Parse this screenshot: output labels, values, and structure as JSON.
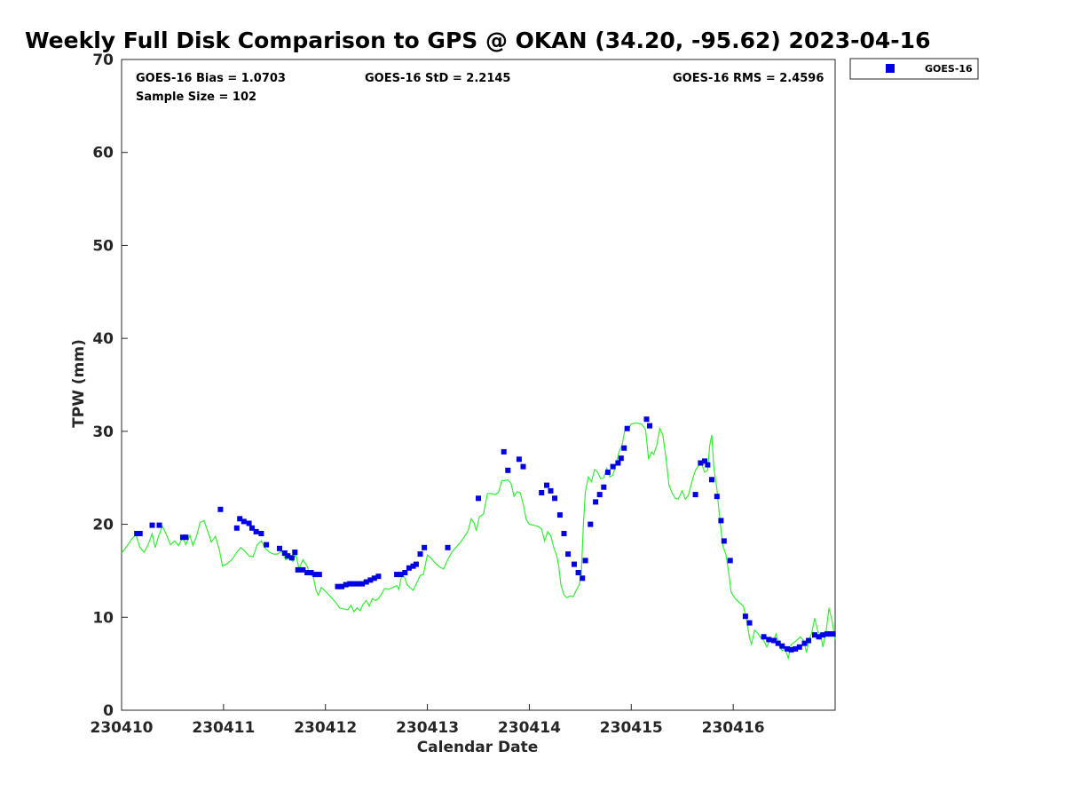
{
  "chart_data": {
    "type": "scatter",
    "title": "Weekly Full Disk Comparison to GPS @ OKAN (34.20, -95.62) 2023-04-16",
    "xlabel": "Calendar Date",
    "ylabel": "TPW (mm)",
    "xlim": [
      0,
      7
    ],
    "ylim": [
      0,
      70
    ],
    "x_tick_labels": [
      "230410",
      "230411",
      "230412",
      "230413",
      "230414",
      "230415",
      "230416"
    ],
    "y_tick_labels": [
      "0",
      "10",
      "20",
      "30",
      "40",
      "50",
      "60",
      "70"
    ],
    "grid": false,
    "legend_position": "top-right (outside plot)",
    "stats": {
      "bias": "GOES-16 Bias = 1.0703",
      "std": "GOES-16 StD = 2.2145",
      "rms": "GOES-16 RMS = 2.4596",
      "sample_size": "Sample Size = 102"
    },
    "series": [
      {
        "name": "GOES-16",
        "kind": "scatter",
        "marker": "square",
        "color": "#0000e6",
        "points": [
          [
            0.15,
            19.0
          ],
          [
            0.18,
            19.0
          ],
          [
            0.3,
            19.9
          ],
          [
            0.37,
            19.9
          ],
          [
            0.6,
            18.6
          ],
          [
            0.63,
            18.6
          ],
          [
            0.97,
            21.6
          ],
          [
            1.13,
            19.6
          ],
          [
            1.16,
            20.6
          ],
          [
            1.2,
            20.3
          ],
          [
            1.25,
            20.1
          ],
          [
            1.28,
            19.6
          ],
          [
            1.32,
            19.2
          ],
          [
            1.37,
            19.0
          ],
          [
            1.42,
            17.8
          ],
          [
            1.55,
            17.4
          ],
          [
            1.6,
            16.9
          ],
          [
            1.63,
            16.6
          ],
          [
            1.67,
            16.4
          ],
          [
            1.7,
            17.0
          ],
          [
            1.73,
            15.1
          ],
          [
            1.78,
            15.1
          ],
          [
            1.82,
            14.8
          ],
          [
            1.86,
            14.8
          ],
          [
            1.9,
            14.6
          ],
          [
            1.94,
            14.6
          ],
          [
            2.12,
            13.3
          ],
          [
            2.16,
            13.3
          ],
          [
            2.2,
            13.5
          ],
          [
            2.24,
            13.6
          ],
          [
            2.28,
            13.6
          ],
          [
            2.32,
            13.6
          ],
          [
            2.36,
            13.6
          ],
          [
            2.4,
            13.8
          ],
          [
            2.44,
            14.0
          ],
          [
            2.48,
            14.2
          ],
          [
            2.52,
            14.4
          ],
          [
            2.7,
            14.6
          ],
          [
            2.74,
            14.6
          ],
          [
            2.78,
            14.8
          ],
          [
            2.82,
            15.3
          ],
          [
            2.86,
            15.5
          ],
          [
            2.89,
            15.7
          ],
          [
            2.93,
            16.8
          ],
          [
            2.97,
            17.5
          ],
          [
            3.2,
            17.5
          ],
          [
            3.5,
            22.8
          ],
          [
            3.75,
            27.8
          ],
          [
            3.79,
            25.8
          ],
          [
            3.9,
            27.0
          ],
          [
            3.94,
            26.2
          ],
          [
            4.12,
            23.4
          ],
          [
            4.17,
            24.2
          ],
          [
            4.21,
            23.6
          ],
          [
            4.25,
            22.8
          ],
          [
            4.3,
            21.0
          ],
          [
            4.34,
            19.0
          ],
          [
            4.38,
            16.8
          ],
          [
            4.44,
            15.7
          ],
          [
            4.48,
            14.8
          ],
          [
            4.52,
            14.2
          ],
          [
            4.55,
            16.1
          ],
          [
            4.6,
            20.0
          ],
          [
            4.65,
            22.4
          ],
          [
            4.69,
            23.2
          ],
          [
            4.73,
            24.0
          ],
          [
            4.77,
            25.6
          ],
          [
            4.82,
            26.2
          ],
          [
            4.87,
            26.6
          ],
          [
            4.9,
            27.1
          ],
          [
            4.93,
            28.2
          ],
          [
            4.96,
            30.3
          ],
          [
            5.15,
            31.3
          ],
          [
            5.18,
            30.6
          ],
          [
            5.63,
            23.2
          ],
          [
            5.68,
            26.6
          ],
          [
            5.72,
            26.8
          ],
          [
            5.75,
            26.4
          ],
          [
            5.79,
            24.8
          ],
          [
            5.84,
            23.0
          ],
          [
            5.88,
            20.4
          ],
          [
            5.91,
            18.2
          ],
          [
            5.97,
            16.1
          ],
          [
            6.12,
            10.1
          ],
          [
            6.16,
            9.4
          ],
          [
            6.3,
            7.9
          ],
          [
            6.35,
            7.6
          ],
          [
            6.4,
            7.5
          ],
          [
            6.44,
            7.2
          ],
          [
            6.48,
            6.9
          ],
          [
            6.53,
            6.6
          ],
          [
            6.57,
            6.5
          ],
          [
            6.61,
            6.6
          ],
          [
            6.65,
            6.8
          ],
          [
            6.7,
            7.2
          ],
          [
            6.74,
            7.5
          ],
          [
            6.8,
            8.1
          ],
          [
            6.84,
            7.9
          ],
          [
            6.88,
            8.1
          ],
          [
            6.92,
            8.2
          ],
          [
            6.95,
            8.2
          ],
          [
            6.98,
            8.2
          ]
        ]
      },
      {
        "kind": "line",
        "color": "#33ee33",
        "points": [
          [
            0.0,
            16.9
          ],
          [
            0.05,
            17.6
          ],
          [
            0.1,
            18.4
          ],
          [
            0.14,
            18.9
          ],
          [
            0.18,
            17.5
          ],
          [
            0.22,
            17.0
          ],
          [
            0.26,
            17.8
          ],
          [
            0.3,
            19.0
          ],
          [
            0.33,
            17.5
          ],
          [
            0.36,
            18.6
          ],
          [
            0.4,
            19.8
          ],
          [
            0.44,
            18.9
          ],
          [
            0.48,
            17.8
          ],
          [
            0.52,
            18.2
          ],
          [
            0.56,
            17.7
          ],
          [
            0.6,
            18.6
          ],
          [
            0.63,
            17.8
          ],
          [
            0.67,
            18.8
          ],
          [
            0.7,
            17.7
          ],
          [
            0.74,
            18.9
          ],
          [
            0.77,
            20.2
          ],
          [
            0.81,
            20.4
          ],
          [
            0.85,
            19.1
          ],
          [
            0.88,
            18.1
          ],
          [
            0.92,
            18.7
          ],
          [
            0.96,
            17.2
          ],
          [
            0.99,
            15.5
          ],
          [
            1.04,
            15.8
          ],
          [
            1.09,
            16.3
          ],
          [
            1.13,
            17.0
          ],
          [
            1.17,
            17.5
          ],
          [
            1.21,
            17.1
          ],
          [
            1.25,
            16.6
          ],
          [
            1.29,
            16.5
          ],
          [
            1.33,
            17.8
          ],
          [
            1.37,
            18.2
          ],
          [
            1.41,
            17.4
          ],
          [
            1.45,
            17.0
          ],
          [
            1.49,
            16.8
          ],
          [
            1.53,
            16.8
          ],
          [
            1.57,
            17.1
          ],
          [
            1.61,
            16.2
          ],
          [
            1.65,
            16.4
          ],
          [
            1.68,
            16.0
          ],
          [
            1.71,
            16.8
          ],
          [
            1.74,
            15.2
          ],
          [
            1.78,
            16.2
          ],
          [
            1.82,
            15.5
          ],
          [
            1.85,
            14.6
          ],
          [
            1.88,
            14.4
          ],
          [
            1.91,
            12.8
          ],
          [
            1.93,
            12.4
          ],
          [
            1.96,
            13.2
          ],
          [
            2.0,
            12.8
          ],
          [
            2.05,
            12.2
          ],
          [
            2.1,
            11.6
          ],
          [
            2.14,
            11.0
          ],
          [
            2.18,
            10.9
          ],
          [
            2.22,
            10.8
          ],
          [
            2.25,
            11.3
          ],
          [
            2.28,
            10.6
          ],
          [
            2.31,
            11.0
          ],
          [
            2.34,
            10.7
          ],
          [
            2.37,
            11.4
          ],
          [
            2.4,
            11.8
          ],
          [
            2.43,
            11.2
          ],
          [
            2.46,
            12.0
          ],
          [
            2.49,
            11.8
          ],
          [
            2.52,
            12.0
          ],
          [
            2.55,
            12.5
          ],
          [
            2.58,
            13.1
          ],
          [
            2.62,
            13.0
          ],
          [
            2.66,
            13.2
          ],
          [
            2.7,
            13.4
          ],
          [
            2.72,
            13.0
          ],
          [
            2.75,
            14.6
          ],
          [
            2.78,
            14.2
          ],
          [
            2.8,
            13.5
          ],
          [
            2.83,
            13.2
          ],
          [
            2.86,
            12.9
          ],
          [
            2.9,
            13.8
          ],
          [
            2.93,
            14.5
          ],
          [
            2.96,
            14.6
          ],
          [
            3.0,
            16.7
          ],
          [
            3.04,
            16.3
          ],
          [
            3.08,
            15.8
          ],
          [
            3.12,
            15.4
          ],
          [
            3.16,
            15.2
          ],
          [
            3.2,
            16.2
          ],
          [
            3.24,
            17.0
          ],
          [
            3.28,
            17.5
          ],
          [
            3.32,
            18.0
          ],
          [
            3.36,
            18.6
          ],
          [
            3.4,
            19.3
          ],
          [
            3.43,
            20.6
          ],
          [
            3.46,
            20.1
          ],
          [
            3.48,
            19.3
          ],
          [
            3.51,
            20.8
          ],
          [
            3.55,
            21.1
          ],
          [
            3.59,
            23.3
          ],
          [
            3.63,
            23.3
          ],
          [
            3.67,
            23.2
          ],
          [
            3.7,
            23.5
          ],
          [
            3.73,
            24.7
          ],
          [
            3.76,
            24.7
          ],
          [
            3.79,
            24.8
          ],
          [
            3.82,
            24.4
          ],
          [
            3.85,
            23.0
          ],
          [
            3.88,
            23.5
          ],
          [
            3.91,
            23.4
          ],
          [
            3.94,
            22.2
          ],
          [
            3.97,
            20.5
          ],
          [
            4.0,
            20.0
          ],
          [
            4.04,
            19.9
          ],
          [
            4.08,
            19.8
          ],
          [
            4.12,
            19.5
          ],
          [
            4.15,
            18.2
          ],
          [
            4.18,
            19.2
          ],
          [
            4.21,
            18.8
          ],
          [
            4.24,
            17.5
          ],
          [
            4.27,
            16.6
          ],
          [
            4.29,
            15.4
          ],
          [
            4.31,
            13.5
          ],
          [
            4.34,
            12.4
          ],
          [
            4.37,
            12.1
          ],
          [
            4.4,
            12.3
          ],
          [
            4.43,
            12.2
          ],
          [
            4.46,
            12.9
          ],
          [
            4.49,
            13.5
          ],
          [
            4.51,
            14.6
          ],
          [
            4.53,
            19.9
          ],
          [
            4.55,
            23.5
          ],
          [
            4.58,
            25.1
          ],
          [
            4.61,
            24.6
          ],
          [
            4.64,
            25.9
          ],
          [
            4.67,
            25.6
          ],
          [
            4.7,
            24.9
          ],
          [
            4.73,
            25.0
          ],
          [
            4.76,
            26.0
          ],
          [
            4.79,
            25.1
          ],
          [
            4.82,
            25.3
          ],
          [
            4.85,
            26.4
          ],
          [
            4.88,
            27.8
          ],
          [
            4.91,
            28.5
          ],
          [
            4.94,
            30.3
          ],
          [
            4.97,
            30.2
          ],
          [
            5.0,
            30.8
          ],
          [
            5.05,
            30.9
          ],
          [
            5.1,
            30.8
          ],
          [
            5.14,
            30.2
          ],
          [
            5.17,
            27.0
          ],
          [
            5.2,
            27.8
          ],
          [
            5.22,
            27.5
          ],
          [
            5.25,
            28.5
          ],
          [
            5.28,
            30.3
          ],
          [
            5.31,
            29.6
          ],
          [
            5.34,
            27.2
          ],
          [
            5.37,
            24.2
          ],
          [
            5.4,
            23.4
          ],
          [
            5.43,
            22.8
          ],
          [
            5.46,
            22.7
          ],
          [
            5.5,
            23.6
          ],
          [
            5.53,
            22.7
          ],
          [
            5.56,
            23.1
          ],
          [
            5.6,
            24.8
          ],
          [
            5.63,
            25.8
          ],
          [
            5.66,
            26.3
          ],
          [
            5.69,
            26.5
          ],
          [
            5.72,
            25.6
          ],
          [
            5.75,
            25.8
          ],
          [
            5.77,
            28.5
          ],
          [
            5.79,
            29.6
          ],
          [
            5.81,
            26.1
          ],
          [
            5.84,
            23.8
          ],
          [
            5.87,
            20.4
          ],
          [
            5.9,
            17.6
          ],
          [
            5.93,
            16.7
          ],
          [
            5.96,
            14.5
          ],
          [
            5.98,
            12.7
          ],
          [
            6.02,
            12.0
          ],
          [
            6.06,
            11.6
          ],
          [
            6.1,
            11.2
          ],
          [
            6.13,
            9.8
          ],
          [
            6.16,
            7.8
          ],
          [
            6.18,
            7.1
          ],
          [
            6.21,
            8.6
          ],
          [
            6.24,
            8.3
          ],
          [
            6.27,
            7.8
          ],
          [
            6.3,
            7.5
          ],
          [
            6.33,
            6.8
          ],
          [
            6.36,
            7.6
          ],
          [
            6.39,
            7.3
          ],
          [
            6.42,
            8.2
          ],
          [
            6.45,
            7.0
          ],
          [
            6.48,
            6.4
          ],
          [
            6.51,
            6.6
          ],
          [
            6.54,
            5.6
          ],
          [
            6.57,
            7.1
          ],
          [
            6.6,
            7.3
          ],
          [
            6.63,
            7.6
          ],
          [
            6.66,
            7.9
          ],
          [
            6.69,
            7.5
          ],
          [
            6.72,
            6.2
          ],
          [
            6.74,
            7.5
          ],
          [
            6.77,
            8.3
          ],
          [
            6.8,
            9.9
          ],
          [
            6.83,
            8.5
          ],
          [
            6.86,
            8.0
          ],
          [
            6.88,
            6.8
          ],
          [
            6.91,
            8.4
          ],
          [
            6.94,
            11.0
          ],
          [
            6.97,
            9.6
          ],
          [
            7.0,
            7.6
          ]
        ]
      }
    ]
  }
}
